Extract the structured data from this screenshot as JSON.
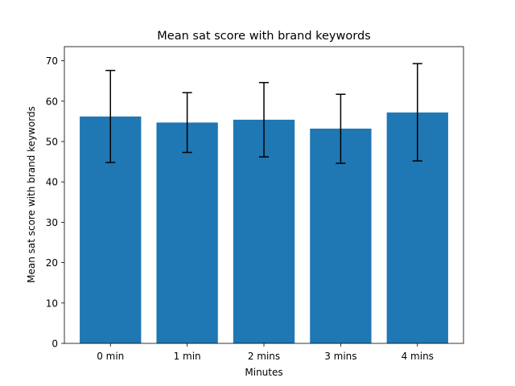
{
  "chart_data": {
    "type": "bar",
    "title": "Mean sat score with brand keywords",
    "xlabel": "Minutes",
    "ylabel": "Mean sat score with brand keywords",
    "categories": [
      "0 min",
      "1 min",
      "2 mins",
      "3 mins",
      "4 mins"
    ],
    "values": [
      56.2,
      54.7,
      55.4,
      53.2,
      57.2
    ],
    "error_low": [
      44.8,
      47.3,
      46.2,
      44.6,
      45.2
    ],
    "error_high": [
      67.6,
      62.1,
      64.6,
      61.7,
      69.3
    ],
    "ylim": [
      0,
      73.5
    ],
    "yticks": [
      0,
      10,
      20,
      30,
      40,
      50,
      60,
      70
    ],
    "grid": false,
    "colors": {
      "bar": "#1f77b4",
      "error": "#000000",
      "axis": "#000000"
    }
  }
}
